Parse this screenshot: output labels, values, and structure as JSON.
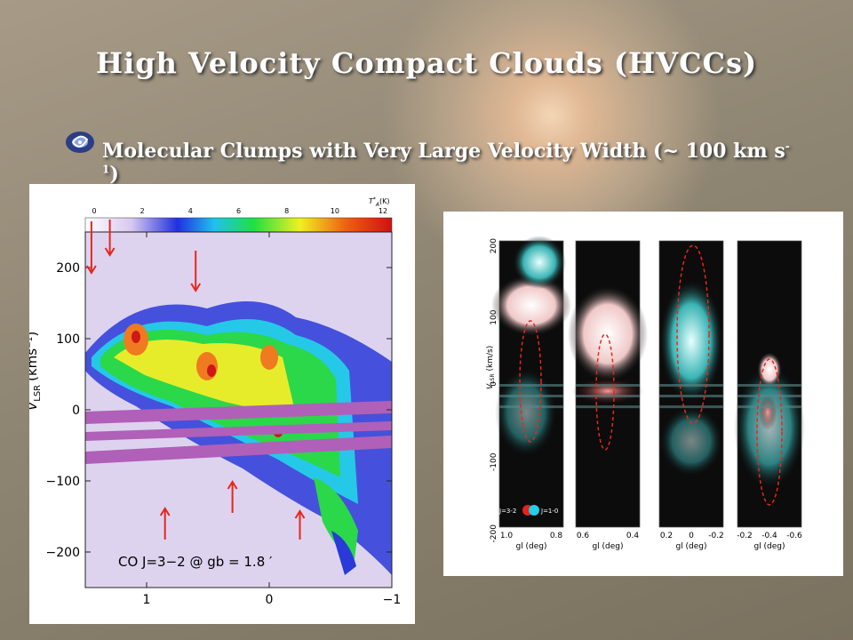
{
  "slide": {
    "title": "High Velocity Compact Clouds (HVCCs)",
    "subtitle": "Molecular Clumps with Very Large Velocity Width (~ 100 km s",
    "subtitle_sup": "-1",
    "subtitle_end": ")"
  },
  "colors": {
    "arrow": "#e8261c",
    "ellipse": "#e8261c",
    "band": "#b060b8"
  },
  "chart_data": [
    {
      "type": "heatmap",
      "colorbar": {
        "label": "T",
        "label_sup": "*",
        "label_sub": "A",
        "unit": "(K)",
        "ticks": [
          "0",
          "2",
          "4",
          "6",
          "8",
          "10",
          "12"
        ]
      },
      "xlabel": "",
      "ylabel": "V",
      "ylabel_sub": "LSR",
      "ylabel_unit": "(kms",
      "ylabel_sup": "−1",
      "ylabel_end": ")",
      "xticks": [
        "1",
        "0",
        "−1"
      ],
      "yticks": [
        "200",
        "100",
        "0",
        "−100",
        "−200"
      ],
      "xlim": [
        1.5,
        -1.0
      ],
      "ylim": [
        -250,
        250
      ],
      "annotation": "CO J=3−2 @ gb = 1.8 ′",
      "down_arrows": [
        1.45,
        1.3,
        0.6
      ],
      "up_arrows": [
        0.85,
        0.3,
        -0.25
      ]
    },
    {
      "type": "heatmap",
      "panels": [
        {
          "xticks": [
            "1.0",
            "0.8"
          ],
          "xlabel": "gl (deg)"
        },
        {
          "xticks": [
            "0.6",
            "0.4"
          ],
          "xlabel": "gl (deg)"
        },
        {
          "xticks": [
            "0.2",
            "0",
            "-0.2"
          ],
          "xlabel": "gl (deg)"
        },
        {
          "xticks": [
            "-0.2",
            "-0.4",
            "-0.6"
          ],
          "xlabel": "gl (deg)"
        }
      ],
      "ylabel": "V",
      "ylabel_sub": "LSR",
      "ylabel_unit": "(km/s)",
      "yticks": [
        "200",
        "100",
        "0",
        "-100",
        "-200"
      ],
      "ylim": [
        -200,
        200
      ],
      "legend": {
        "left": "J=3-2",
        "right": "J=1-0"
      }
    }
  ]
}
